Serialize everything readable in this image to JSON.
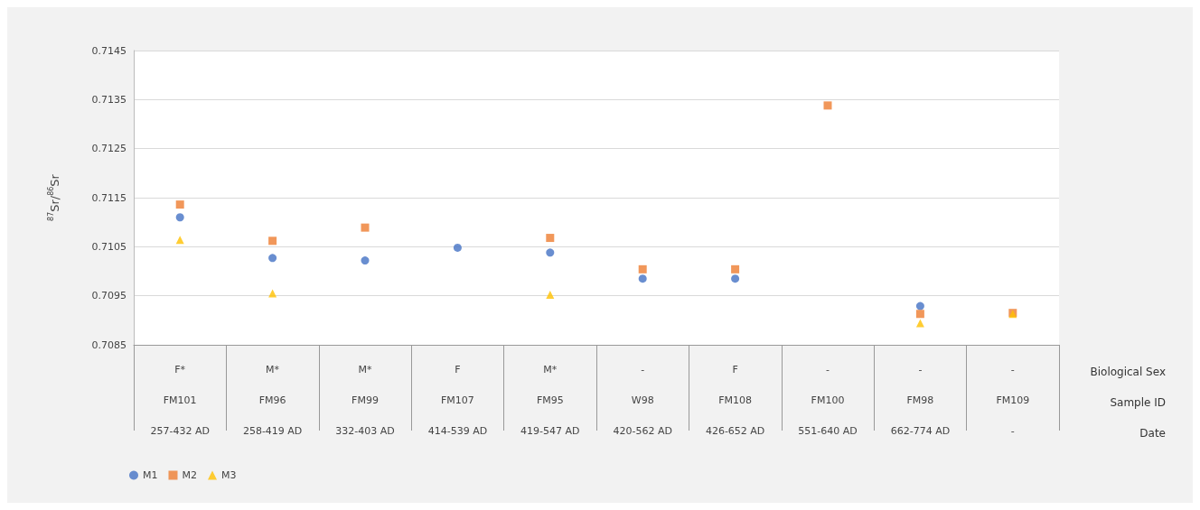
{
  "chart_data": {
    "type": "scatter",
    "ylabel": "$^{87}$Sr/$^{86}$Sr",
    "categories": [
      "F*\nFM101\n257-432 AD",
      "M*\nFM96\n258-419 AD",
      "M*\nFM99\n332-403 AD",
      "F\nFM107\n414-539 AD",
      "M*\nFM95\n419-547 AD",
      "-\nW98\n420-562 AD",
      "F\nFM108\n426-652 AD",
      "-\nFM100\n551-640 AD",
      "-\nFM98\n662-774 AD",
      "-\nFM109\n-"
    ],
    "series": [
      {
        "name": "M1",
        "color": "#4472c4",
        "marker": "circle",
        "values": [
          0.7111,
          0.71027,
          0.71022,
          0.71048,
          0.71038,
          0.70985,
          0.70985,
          null,
          0.70929,
          null
        ]
      },
      {
        "name": "M2",
        "color": "#ed7d31",
        "marker": "square",
        "values": [
          0.71136,
          0.71062,
          0.71089,
          null,
          0.71068,
          0.71004,
          0.71004,
          0.71338,
          0.70913,
          0.70915
        ]
      },
      {
        "name": "M3",
        "color": "#ffc000",
        "marker": "triangle",
        "values": [
          0.71064,
          0.70955,
          null,
          null,
          0.70952,
          null,
          null,
          null,
          0.70894,
          0.70913
        ]
      }
    ],
    "ylim": [
      0.7085,
      0.7145
    ],
    "yticks": [
      0.7085,
      0.7095,
      0.7105,
      0.7115,
      0.7125,
      0.7135,
      0.7145
    ],
    "grid": "y",
    "legend": "bottom left",
    "annotations": [
      "Biological Sex",
      "Sample ID",
      "Date"
    ]
  }
}
